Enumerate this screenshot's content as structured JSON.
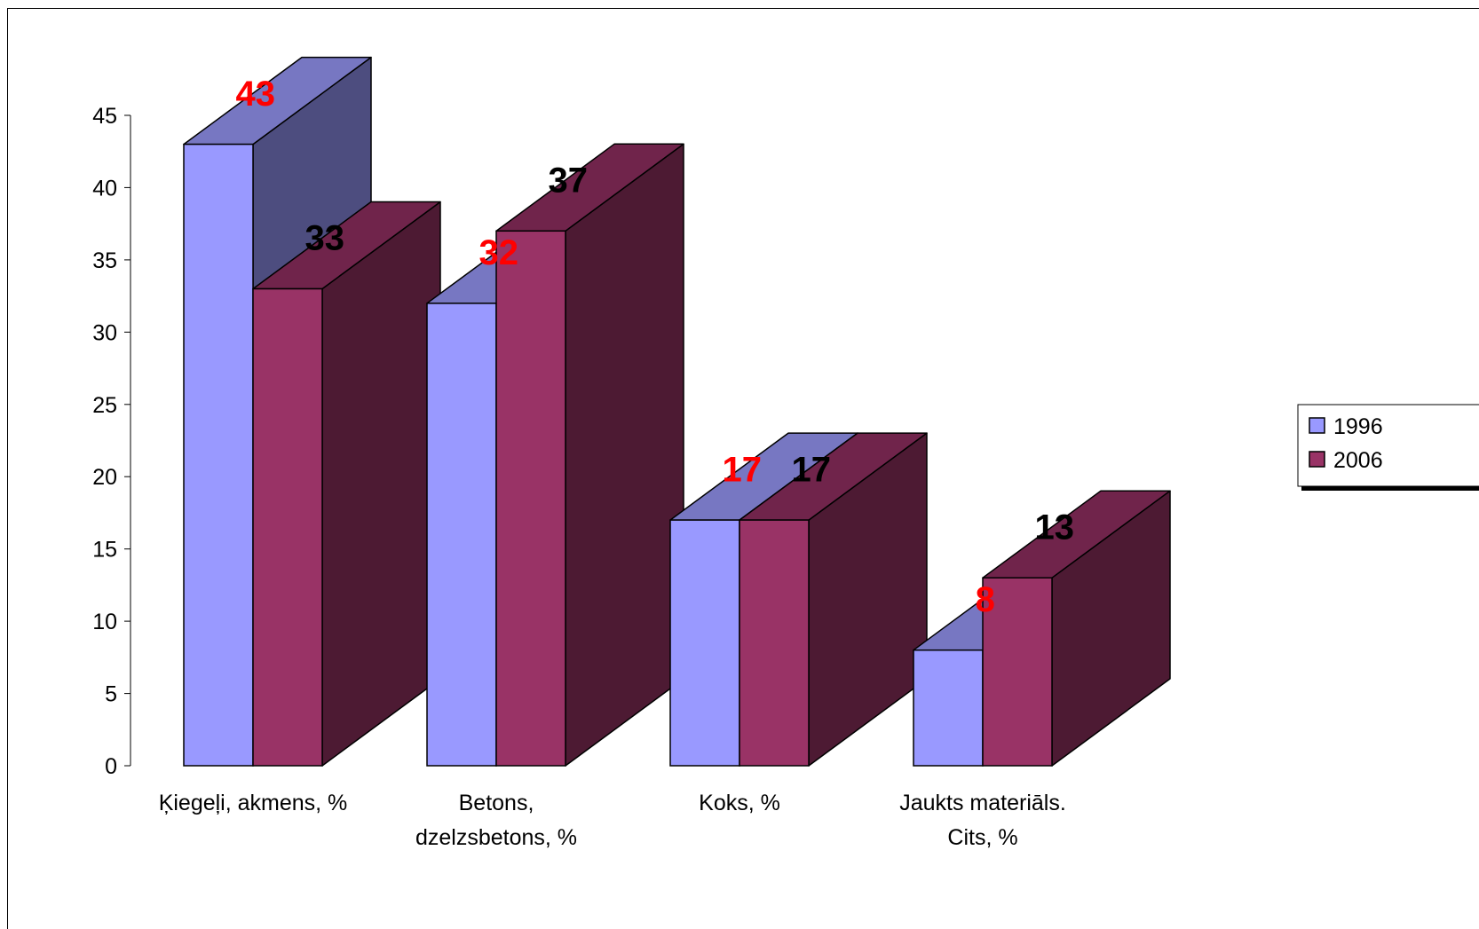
{
  "chart_data": {
    "type": "bar",
    "categories": [
      [
        "Ķiegeļi, akmens, %"
      ],
      [
        "Betons,",
        "dzelzsbetons, %"
      ],
      [
        "Koks, %"
      ],
      [
        "Jaukts materiāls.",
        "Cits, %"
      ]
    ],
    "series": [
      {
        "name": "1996",
        "values": [
          43,
          32,
          17,
          8
        ],
        "color": "#9999ff",
        "top_color": "#7777c2",
        "side_color": "#4d4d7f",
        "label_color": "#ff0000"
      },
      {
        "name": "2006",
        "values": [
          33,
          37,
          17,
          13
        ],
        "color": "#993366",
        "top_color": "#70244b",
        "side_color": "#4d1a33",
        "label_color": "#000000"
      }
    ],
    "ylim": [
      0,
      45
    ],
    "yticks": [
      "0",
      "5",
      "10",
      "15",
      "20",
      "25",
      "30",
      "35",
      "40",
      "45"
    ],
    "grid": false,
    "legend_position": "right"
  }
}
